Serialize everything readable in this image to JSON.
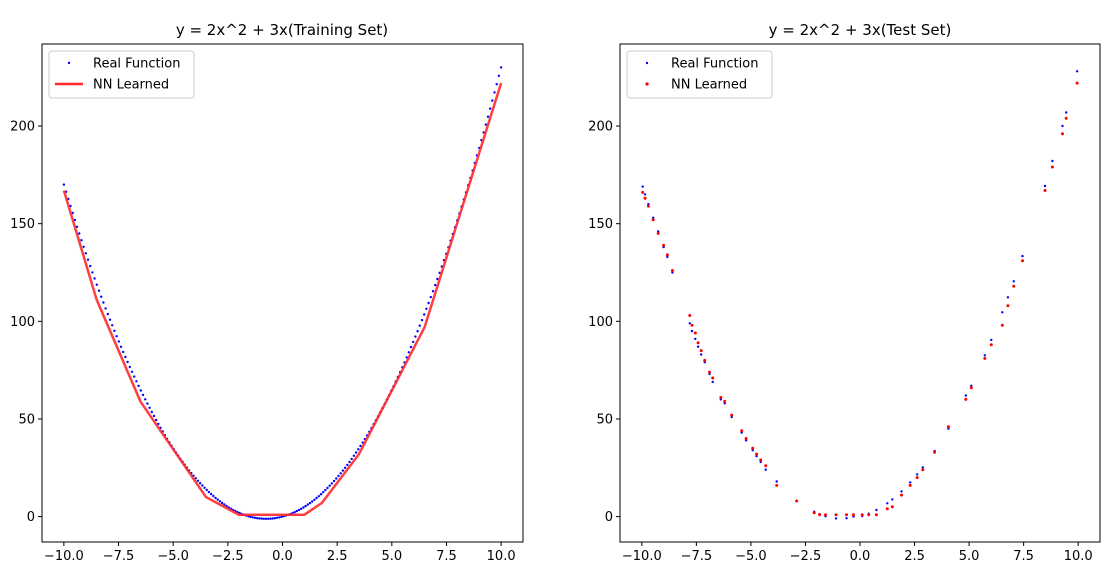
{
  "chart_data": [
    {
      "type": "line",
      "title": "y = 2x^2 + 3x(Training Set)",
      "xlabel": "",
      "ylabel": "",
      "xlim": [
        -11,
        11
      ],
      "ylim": [
        -13,
        242
      ],
      "xticks": [
        -10,
        -7.5,
        -5,
        -2.5,
        0,
        2.5,
        5,
        7.5,
        10
      ],
      "xtick_labels": [
        "−10.0",
        "−7.5",
        "−5.0",
        "−2.5",
        "0.0",
        "2.5",
        "5.0",
        "7.5",
        "10.0"
      ],
      "yticks": [
        0,
        50,
        100,
        150,
        200
      ],
      "ytick_labels": [
        "0",
        "50",
        "100",
        "150",
        "200"
      ],
      "grid": false,
      "legend_position": "upper-left",
      "series": [
        {
          "name": "Real Function",
          "kind": "scatter",
          "color": "#0000ff",
          "function": "2x^2 + 3x",
          "x_range": [
            -10,
            10
          ],
          "n_points": 200
        },
        {
          "name": "NN Learned",
          "kind": "line",
          "color": "#ff2a2a",
          "x": [
            -10,
            -8.5,
            -6.5,
            -3.5,
            -2,
            1,
            1.8,
            3.5,
            6.5,
            10
          ],
          "y": [
            167,
            111,
            59,
            10,
            1,
            1,
            7,
            32,
            97,
            222
          ]
        }
      ]
    },
    {
      "type": "scatter",
      "title": "y = 2x^2 + 3x(Test Set)",
      "xlabel": "",
      "ylabel": "",
      "xlim": [
        -11,
        11
      ],
      "ylim": [
        -13,
        242
      ],
      "xticks": [
        -10,
        -7.5,
        -5,
        -2.5,
        0,
        2.5,
        5,
        7.5,
        10
      ],
      "xtick_labels": [
        "−10.0",
        "−7.5",
        "−5.0",
        "−2.5",
        "0.0",
        "2.5",
        "5.0",
        "7.5",
        "10.0"
      ],
      "yticks": [
        0,
        50,
        100,
        150,
        200
      ],
      "ytick_labels": [
        "0",
        "50",
        "100",
        "150",
        "200"
      ],
      "grid": false,
      "legend_position": "upper-left",
      "series": [
        {
          "name": "Real Function",
          "kind": "scatter",
          "color": "#0000ff",
          "x": [
            -9.96,
            -9.85,
            -9.7,
            -9.48,
            -9.25,
            -9.0,
            -8.83,
            -8.6,
            -7.8,
            -7.7,
            -7.55,
            -7.42,
            -7.28,
            -7.12,
            -6.9,
            -6.75,
            -6.38,
            -6.2,
            -5.88,
            -5.42,
            -5.22,
            -4.92,
            -4.74,
            -4.55,
            -4.32,
            -3.82,
            -2.9,
            -2.1,
            -1.85,
            -1.58,
            -1.1,
            -0.62,
            -0.3,
            0.1,
            0.4,
            0.75,
            1.25,
            1.48,
            1.9,
            2.3,
            2.62,
            2.88,
            3.42,
            4.05,
            4.85,
            5.1,
            5.72,
            6.02,
            6.52,
            6.78,
            7.05,
            7.45,
            8.48,
            8.82,
            9.28,
            9.45,
            9.95
          ],
          "y": [
            169,
            165,
            160,
            153,
            146,
            138,
            133,
            125,
            99,
            95,
            91,
            87,
            83,
            79,
            73,
            69,
            60,
            58,
            51,
            43,
            39,
            34,
            31,
            28,
            24,
            18,
            8,
            2.5,
            1.3,
            0.2,
            -0.9,
            -0.8,
            0,
            0.3,
            1.5,
            3.4,
            6.8,
            8.8,
            12.9,
            17.5,
            21.6,
            25.2,
            33.6,
            45,
            62,
            67,
            82.6,
            90.5,
            104.6,
            112.3,
            120.5,
            133.4,
            169.3,
            182.1,
            200,
            206.9,
            228
          ]
        },
        {
          "name": "NN Learned",
          "kind": "scatter",
          "color": "#ff0000",
          "x": [
            -9.96,
            -9.85,
            -9.7,
            -9.48,
            -9.25,
            -9.0,
            -8.83,
            -8.6,
            -7.8,
            -7.7,
            -7.55,
            -7.42,
            -7.28,
            -7.12,
            -6.9,
            -6.75,
            -6.38,
            -6.2,
            -5.88,
            -5.42,
            -5.22,
            -4.92,
            -4.74,
            -4.55,
            -4.32,
            -3.82,
            -2.9,
            -2.1,
            -1.85,
            -1.58,
            -1.1,
            -0.62,
            -0.3,
            0.1,
            0.4,
            0.75,
            1.25,
            1.48,
            1.9,
            2.3,
            2.62,
            2.88,
            3.42,
            4.05,
            4.85,
            5.1,
            5.72,
            6.02,
            6.52,
            6.78,
            7.05,
            7.45,
            8.48,
            8.82,
            9.28,
            9.45,
            9.95
          ],
          "y": [
            166,
            163,
            159,
            152,
            145,
            139,
            134,
            126,
            103,
            98,
            94,
            89,
            85,
            80,
            74,
            71,
            61,
            59,
            52,
            44,
            40,
            35,
            32,
            29,
            26,
            16,
            8,
            2,
            1,
            1,
            1,
            1,
            1,
            1,
            1,
            1,
            4,
            5,
            11,
            16,
            20,
            24,
            33,
            46,
            60,
            66,
            81,
            88,
            98,
            108,
            118,
            131,
            167,
            179,
            196,
            204,
            222
          ]
        }
      ]
    }
  ]
}
